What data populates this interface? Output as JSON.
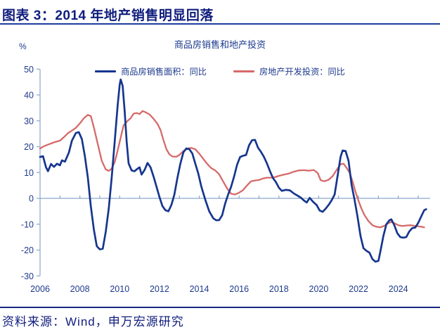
{
  "header": {
    "title": "图表 3：2014 年地产销售明显回落"
  },
  "footer": {
    "source": "资料来源：Wind，申万宏源研究"
  },
  "chart_data": {
    "type": "line",
    "title": "商品房销售和地产投资",
    "y_unit": "%",
    "ylim": [
      -30,
      50
    ],
    "y_ticks": [
      50,
      40,
      30,
      20,
      10,
      0,
      -10,
      -20,
      -30
    ],
    "xlim": [
      2006,
      2025.6
    ],
    "x_tick_labels": [
      "2006",
      "2008",
      "2010",
      "2012",
      "2014",
      "2016",
      "2018",
      "2020",
      "2022",
      "2024"
    ],
    "x_minor_tick_years": [
      2007,
      2008,
      2009,
      2010,
      2011,
      2012,
      2013,
      2014,
      2015,
      2016,
      2017,
      2018,
      2019,
      2020,
      2021,
      2022,
      2023,
      2024,
      2025
    ],
    "grid": "zero-baseline-only",
    "legend_position": "top-center",
    "colors": {
      "axis": "#8ba6c9",
      "labels": "#1c3a8e"
    },
    "series": [
      {
        "name": "商品房销售面积：同比",
        "color": "#16368e",
        "width": 2.7,
        "points": [
          [
            2006.0,
            16
          ],
          [
            2006.15,
            16.3
          ],
          [
            2006.3,
            12
          ],
          [
            2006.4,
            10.5
          ],
          [
            2006.55,
            13.3
          ],
          [
            2006.7,
            12.2
          ],
          [
            2006.85,
            13.4
          ],
          [
            2007.0,
            12.8
          ],
          [
            2007.1,
            14.7
          ],
          [
            2007.25,
            14.2
          ],
          [
            2007.45,
            17.8
          ],
          [
            2007.6,
            22.3
          ],
          [
            2007.8,
            25.3
          ],
          [
            2007.95,
            25.6
          ],
          [
            2008.1,
            22.9
          ],
          [
            2008.25,
            16.4
          ],
          [
            2008.4,
            8
          ],
          [
            2008.55,
            -3
          ],
          [
            2008.7,
            -12
          ],
          [
            2008.85,
            -18.5
          ],
          [
            2009.0,
            -19.7
          ],
          [
            2009.15,
            -19.5
          ],
          [
            2009.3,
            -13
          ],
          [
            2009.45,
            -4
          ],
          [
            2009.6,
            8
          ],
          [
            2009.75,
            22
          ],
          [
            2009.9,
            36
          ],
          [
            2010.0,
            44
          ],
          [
            2010.05,
            46
          ],
          [
            2010.15,
            43.5
          ],
          [
            2010.25,
            34
          ],
          [
            2010.35,
            22
          ],
          [
            2010.45,
            13.5
          ],
          [
            2010.6,
            10.8
          ],
          [
            2010.75,
            10.5
          ],
          [
            2010.9,
            11.5
          ],
          [
            2011.0,
            12
          ],
          [
            2011.1,
            9.2
          ],
          [
            2011.25,
            11
          ],
          [
            2011.4,
            13.7
          ],
          [
            2011.55,
            12
          ],
          [
            2011.7,
            8.5
          ],
          [
            2011.85,
            4.5
          ],
          [
            2012.0,
            0.5
          ],
          [
            2012.15,
            -3
          ],
          [
            2012.3,
            -4.6
          ],
          [
            2012.45,
            -5
          ],
          [
            2012.6,
            -2.5
          ],
          [
            2012.75,
            1.5
          ],
          [
            2012.9,
            7.9
          ],
          [
            2013.05,
            13.4
          ],
          [
            2013.2,
            17.8
          ],
          [
            2013.35,
            19.3
          ],
          [
            2013.5,
            19
          ],
          [
            2013.65,
            17.4
          ],
          [
            2013.8,
            13.4
          ],
          [
            2013.95,
            9.6
          ],
          [
            2014.1,
            4.6
          ],
          [
            2014.3,
            -0.5
          ],
          [
            2014.5,
            -5
          ],
          [
            2014.7,
            -7.7
          ],
          [
            2014.85,
            -8.5
          ],
          [
            2015.0,
            -8.4
          ],
          [
            2015.15,
            -6.5
          ],
          [
            2015.3,
            -2
          ],
          [
            2015.45,
            1.5
          ],
          [
            2015.6,
            4.5
          ],
          [
            2015.75,
            8.5
          ],
          [
            2015.9,
            13
          ],
          [
            2016.05,
            16
          ],
          [
            2016.2,
            16.5
          ],
          [
            2016.35,
            16.8
          ],
          [
            2016.5,
            20.5
          ],
          [
            2016.65,
            22.5
          ],
          [
            2016.8,
            22.6
          ],
          [
            2016.95,
            19.6
          ],
          [
            2017.1,
            18
          ],
          [
            2017.25,
            16
          ],
          [
            2017.4,
            13.5
          ],
          [
            2017.55,
            10.5
          ],
          [
            2017.7,
            7.9
          ],
          [
            2017.85,
            6.3
          ],
          [
            2018.0,
            4.1
          ],
          [
            2018.15,
            2.9
          ],
          [
            2018.35,
            3.3
          ],
          [
            2018.55,
            3.1
          ],
          [
            2018.75,
            1.9
          ],
          [
            2018.95,
            1.0
          ],
          [
            2019.1,
            0.3
          ],
          [
            2019.25,
            -0.8
          ],
          [
            2019.4,
            -1.6
          ],
          [
            2019.55,
            0.2
          ],
          [
            2019.7,
            -1.2
          ],
          [
            2019.9,
            -2.6
          ],
          [
            2020.05,
            -4.7
          ],
          [
            2020.2,
            -5.2
          ],
          [
            2020.35,
            -4
          ],
          [
            2020.5,
            -2.5
          ],
          [
            2020.65,
            -0.8
          ],
          [
            2020.8,
            1.5
          ],
          [
            2020.95,
            8.7
          ],
          [
            2021.1,
            16.1
          ],
          [
            2021.2,
            18.5
          ],
          [
            2021.35,
            18.3
          ],
          [
            2021.5,
            14.5
          ],
          [
            2021.65,
            5.2
          ],
          [
            2021.8,
            -0.5
          ],
          [
            2021.95,
            -7
          ],
          [
            2022.1,
            -14.5
          ],
          [
            2022.25,
            -19.3
          ],
          [
            2022.4,
            -20.3
          ],
          [
            2022.55,
            -21
          ],
          [
            2022.7,
            -23.5
          ],
          [
            2022.85,
            -24.5
          ],
          [
            2023.0,
            -24.2
          ],
          [
            2023.1,
            -20.5
          ],
          [
            2023.25,
            -14.5
          ],
          [
            2023.4,
            -10
          ],
          [
            2023.55,
            -8.5
          ],
          [
            2023.65,
            -8.1
          ],
          [
            2023.8,
            -10.4
          ],
          [
            2023.95,
            -13.5
          ],
          [
            2024.1,
            -15
          ],
          [
            2024.25,
            -15.2
          ],
          [
            2024.4,
            -15
          ],
          [
            2024.55,
            -12.8
          ],
          [
            2024.7,
            -11.5
          ],
          [
            2024.85,
            -11.3
          ],
          [
            2025.0,
            -9.5
          ],
          [
            2025.15,
            -7
          ],
          [
            2025.3,
            -4.6
          ],
          [
            2025.4,
            -4.2
          ]
        ]
      },
      {
        "name": "房地产开发投资：同比",
        "color": "#d56a69",
        "width": 2.3,
        "points": [
          [
            2006.0,
            19.3
          ],
          [
            2006.2,
            20.2
          ],
          [
            2006.4,
            20.8
          ],
          [
            2006.6,
            21.4
          ],
          [
            2006.8,
            21.9
          ],
          [
            2007.0,
            22.3
          ],
          [
            2007.2,
            23.7
          ],
          [
            2007.4,
            25.2
          ],
          [
            2007.6,
            26.2
          ],
          [
            2007.8,
            27.3
          ],
          [
            2008.0,
            29
          ],
          [
            2008.2,
            31
          ],
          [
            2008.4,
            32.3
          ],
          [
            2008.55,
            31.8
          ],
          [
            2008.7,
            27.5
          ],
          [
            2008.9,
            21
          ],
          [
            2009.1,
            14.5
          ],
          [
            2009.3,
            11.2
          ],
          [
            2009.45,
            10.6
          ],
          [
            2009.6,
            11.5
          ],
          [
            2009.75,
            14
          ],
          [
            2009.9,
            18.5
          ],
          [
            2010.05,
            23.5
          ],
          [
            2010.2,
            28.3
          ],
          [
            2010.4,
            30
          ],
          [
            2010.55,
            31
          ],
          [
            2010.7,
            32.8
          ],
          [
            2010.85,
            33
          ],
          [
            2011.0,
            32.6
          ],
          [
            2011.15,
            33.8
          ],
          [
            2011.3,
            33.3
          ],
          [
            2011.5,
            32.5
          ],
          [
            2011.7,
            30.8
          ],
          [
            2011.9,
            28.8
          ],
          [
            2012.05,
            26.5
          ],
          [
            2012.2,
            22.5
          ],
          [
            2012.35,
            19
          ],
          [
            2012.5,
            17
          ],
          [
            2012.65,
            16.2
          ],
          [
            2012.85,
            16.1
          ],
          [
            2013.0,
            16.8
          ],
          [
            2013.2,
            18.3
          ],
          [
            2013.4,
            19.3
          ],
          [
            2013.6,
            19.5
          ],
          [
            2013.8,
            19
          ],
          [
            2014.0,
            17.3
          ],
          [
            2014.2,
            15.3
          ],
          [
            2014.4,
            13.3
          ],
          [
            2014.6,
            11.7
          ],
          [
            2014.8,
            10.8
          ],
          [
            2015.0,
            9.3
          ],
          [
            2015.2,
            6.5
          ],
          [
            2015.4,
            3.8
          ],
          [
            2015.6,
            1.8
          ],
          [
            2015.8,
            1.5
          ],
          [
            2016.0,
            2.2
          ],
          [
            2016.2,
            3.2
          ],
          [
            2016.4,
            5
          ],
          [
            2016.6,
            6.6
          ],
          [
            2016.8,
            6.9
          ],
          [
            2017.0,
            7.1
          ],
          [
            2017.2,
            7.7
          ],
          [
            2017.4,
            8
          ],
          [
            2017.6,
            8
          ],
          [
            2017.8,
            8.2
          ],
          [
            2018.0,
            8.7
          ],
          [
            2018.25,
            9.2
          ],
          [
            2018.5,
            9.6
          ],
          [
            2018.75,
            10.3
          ],
          [
            2019.0,
            10.8
          ],
          [
            2019.25,
            10.9
          ],
          [
            2019.5,
            10.7
          ],
          [
            2019.75,
            11
          ],
          [
            2019.95,
            9.8
          ],
          [
            2020.1,
            7
          ],
          [
            2020.3,
            6.6
          ],
          [
            2020.5,
            7.2
          ],
          [
            2020.7,
            8.6
          ],
          [
            2020.9,
            11
          ],
          [
            2021.1,
            13.2
          ],
          [
            2021.25,
            13.4
          ],
          [
            2021.4,
            11.8
          ],
          [
            2021.55,
            10
          ],
          [
            2021.7,
            6.5
          ],
          [
            2021.85,
            2.5
          ],
          [
            2022.0,
            -1
          ],
          [
            2022.15,
            -4
          ],
          [
            2022.3,
            -6.5
          ],
          [
            2022.5,
            -8.8
          ],
          [
            2022.7,
            -10.4
          ],
          [
            2022.9,
            -11
          ],
          [
            2023.1,
            -11.2
          ],
          [
            2023.3,
            -10.6
          ],
          [
            2023.5,
            -9.6
          ],
          [
            2023.65,
            -9.1
          ],
          [
            2023.8,
            -9.6
          ],
          [
            2024.0,
            -10.4
          ],
          [
            2024.2,
            -10.7
          ],
          [
            2024.4,
            -10.5
          ],
          [
            2024.6,
            -10.4
          ],
          [
            2024.8,
            -10.6
          ],
          [
            2025.0,
            -10.8
          ],
          [
            2025.15,
            -11
          ],
          [
            2025.3,
            -11.2
          ]
        ]
      }
    ]
  }
}
